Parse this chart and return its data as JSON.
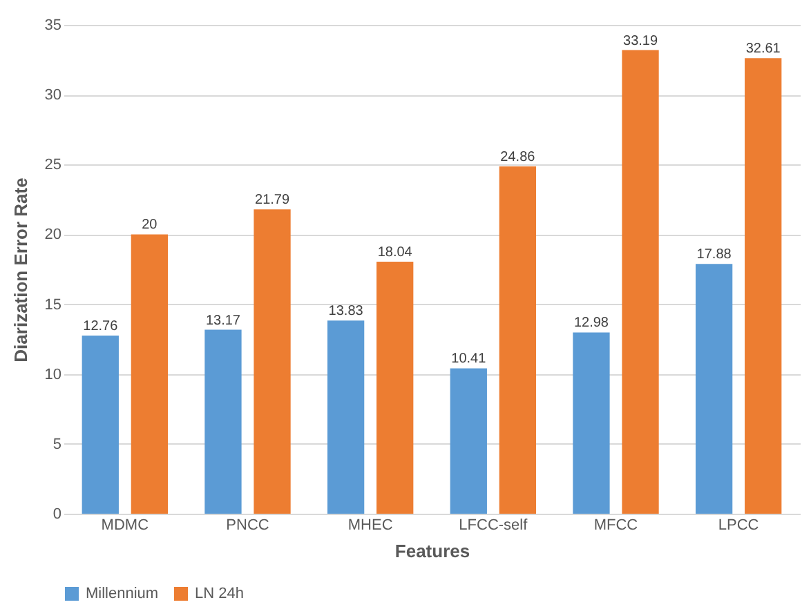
{
  "chart_data": {
    "type": "bar",
    "xlabel": "Features",
    "ylabel": "Diarization  Error Rate",
    "categories": [
      "MDMC",
      "PNCC",
      "MHEC",
      "LFCC-self",
      "MFCC",
      "LPCC"
    ],
    "series": [
      {
        "name": "Millennium",
        "color": "#5b9bd5",
        "values": [
          12.76,
          13.17,
          13.83,
          10.41,
          12.98,
          17.88
        ]
      },
      {
        "name": "LN 24h",
        "color": "#ed7d31",
        "values": [
          20,
          21.79,
          18.04,
          24.86,
          33.19,
          32.61
        ]
      }
    ],
    "ylim": [
      0,
      35
    ],
    "yticks": [
      0,
      5,
      10,
      15,
      20,
      25,
      30,
      35
    ],
    "grid": "y",
    "legend": "bottom",
    "data_labels": true
  }
}
